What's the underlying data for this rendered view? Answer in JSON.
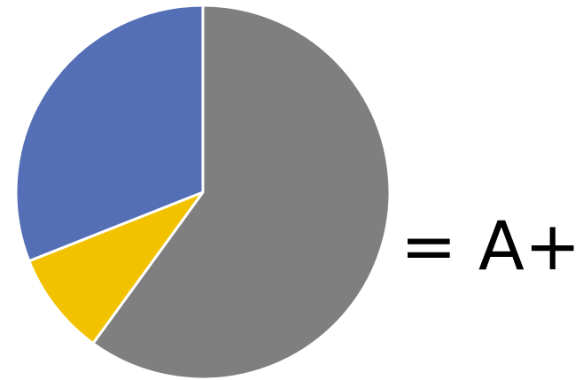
{
  "chart_data": {
    "type": "pie",
    "title": "",
    "slices": [
      {
        "value": 60,
        "color": "#7f7f7f"
      },
      {
        "value": 9,
        "color": "#f2c200"
      },
      {
        "value": 31,
        "color": "#546fb5"
      }
    ],
    "start": "12 o'clock",
    "direction": "clockwise",
    "separator_color": "#ffffff"
  },
  "equation": {
    "text": "= A+"
  }
}
